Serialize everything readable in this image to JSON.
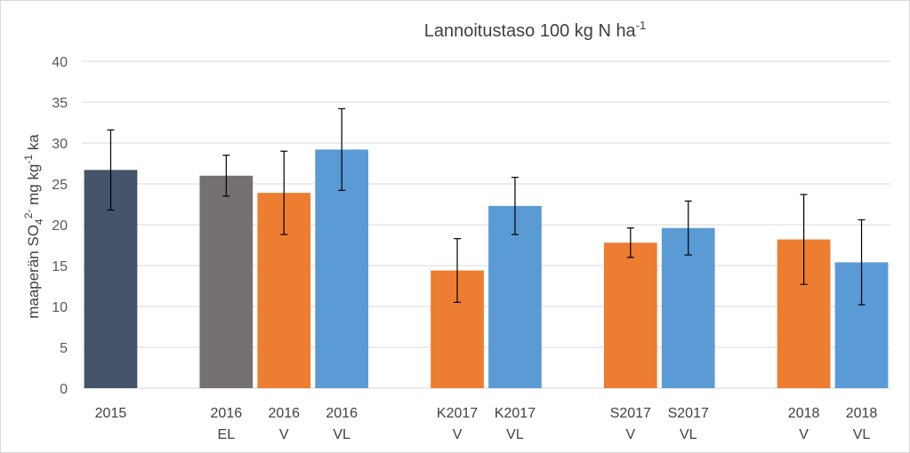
{
  "chart_data": {
    "type": "bar",
    "title": {
      "main": "Lannoitustaso 100 kg N ha",
      "sup": "-1"
    },
    "ylabel": {
      "parts": [
        {
          "text": "maaperän SO",
          "style": "normal"
        },
        {
          "text": "4",
          "style": "sub"
        },
        {
          "text": "2-",
          "style": "sup"
        },
        {
          "text": " mg kg",
          "style": "normal"
        },
        {
          "text": "-1",
          "style": "sup"
        },
        {
          "text": " ka",
          "style": "normal"
        }
      ]
    },
    "ylim": [
      0,
      40
    ],
    "yticks": [
      0,
      5,
      10,
      15,
      20,
      25,
      30,
      35,
      40
    ],
    "grid": true,
    "colors": {
      "dark": "#44546a",
      "gray": "#767171",
      "orange": "#ed7d31",
      "blue": "#5b9bd5",
      "grid": "#d9d9d9",
      "error": "#000000"
    },
    "groups": [
      {
        "bars": [
          {
            "label": [
              "2015"
            ],
            "value": 26.7,
            "err": 4.9,
            "color": "dark"
          }
        ]
      },
      {
        "bars": [
          {
            "label": [
              "2016",
              "EL"
            ],
            "value": 26.0,
            "err": 2.5,
            "color": "gray"
          },
          {
            "label": [
              "2016",
              "V"
            ],
            "value": 23.9,
            "err": 5.1,
            "color": "orange"
          },
          {
            "label": [
              "2016",
              "VL"
            ],
            "value": 29.2,
            "err": 5.0,
            "color": "blue"
          }
        ]
      },
      {
        "bars": [
          {
            "label": [
              "K2017",
              "V"
            ],
            "value": 14.4,
            "err": 3.9,
            "color": "orange"
          },
          {
            "label": [
              "K2017",
              "VL"
            ],
            "value": 22.3,
            "err": 3.5,
            "color": "blue"
          }
        ]
      },
      {
        "bars": [
          {
            "label": [
              "S2017",
              "V"
            ],
            "value": 17.8,
            "err": 1.8,
            "color": "orange"
          },
          {
            "label": [
              "S2017",
              "VL"
            ],
            "value": 19.6,
            "err": 3.3,
            "color": "blue"
          }
        ]
      },
      {
        "bars": [
          {
            "label": [
              "2018",
              "V"
            ],
            "value": 18.2,
            "err": 5.5,
            "color": "orange"
          },
          {
            "label": [
              "2018",
              "VL"
            ],
            "value": 15.4,
            "err": 5.2,
            "color": "blue"
          }
        ]
      }
    ]
  }
}
